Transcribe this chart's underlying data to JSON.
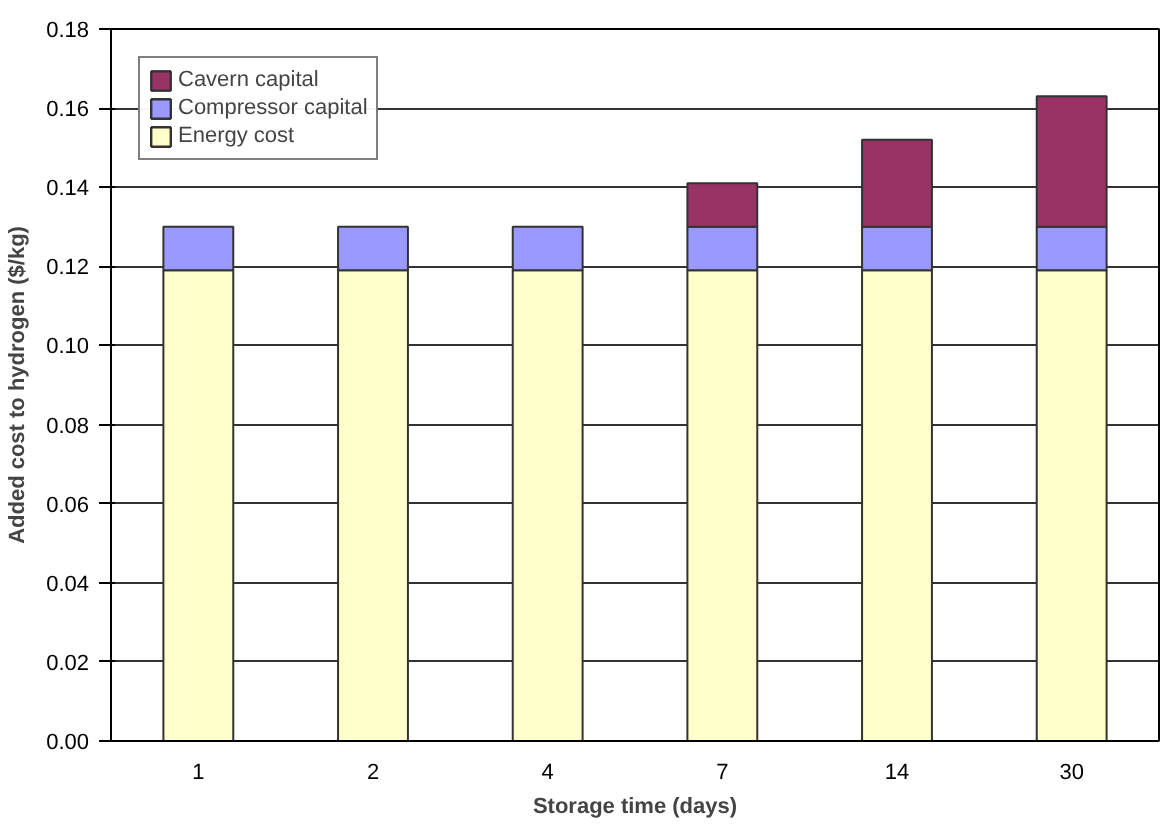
{
  "chart_data": {
    "type": "bar",
    "stacked": true,
    "xlabel": "Storage time (days)",
    "ylabel": "Added cost to hydrogen ($/kg)",
    "categories": [
      "1",
      "2",
      "4",
      "7",
      "14",
      "30"
    ],
    "series": [
      {
        "name": "Energy cost",
        "color": "#ffffcc",
        "values": [
          0.119,
          0.119,
          0.119,
          0.119,
          0.119,
          0.119
        ]
      },
      {
        "name": "Compressor capital",
        "color": "#9999ff",
        "values": [
          0.011,
          0.011,
          0.011,
          0.011,
          0.011,
          0.011
        ]
      },
      {
        "name": "Cavern capital",
        "color": "#993366",
        "values": [
          null,
          null,
          null,
          0.011,
          0.022,
          0.033
        ]
      }
    ],
    "ylim": [
      0,
      0.18
    ],
    "yticks": [
      {
        "value": 0,
        "label": "0.00"
      },
      {
        "value": 0.02,
        "label": "0.02"
      },
      {
        "value": 0.04,
        "label": "0.04"
      },
      {
        "value": 0.06,
        "label": "0.06"
      },
      {
        "value": 0.08,
        "label": "0.08"
      },
      {
        "value": 0.1,
        "label": "0.10"
      },
      {
        "value": 0.12,
        "label": "0.12"
      },
      {
        "value": 0.14,
        "label": "0.14"
      },
      {
        "value": 0.16,
        "label": "0.16"
      },
      {
        "value": 0.18,
        "label": "0.18"
      }
    ],
    "grid": "y",
    "legend": "top left"
  }
}
